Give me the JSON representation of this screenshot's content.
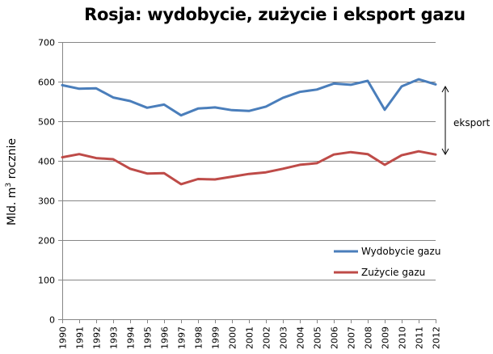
{
  "chart_data": {
    "type": "line",
    "title": "Rosja: wydobycie, zużycie i eksport gazu",
    "xlabel": "",
    "ylabel": "Mld. m³ rocznie",
    "ylabel_parts": {
      "before": "Mld. m",
      "sup": "3",
      "after": " rocznie"
    },
    "ylim": [
      0,
      700
    ],
    "yticks": [
      0,
      100,
      200,
      300,
      400,
      500,
      600,
      700
    ],
    "grid": true,
    "legend_position": "lower right (inside plot)",
    "x": [
      1990,
      1991,
      1992,
      1993,
      1994,
      1995,
      1996,
      1997,
      1998,
      1999,
      2000,
      2001,
      2002,
      2003,
      2004,
      2005,
      2006,
      2007,
      2008,
      2009,
      2010,
      2011,
      2012
    ],
    "series": [
      {
        "name": "Wydobycie gazu",
        "color": "#4a7ebb",
        "values": [
          591,
          582,
          583,
          560,
          551,
          534,
          542,
          515,
          532,
          535,
          528,
          526,
          537,
          559,
          574,
          580,
          595,
          592,
          602,
          529,
          588,
          606,
          593
        ]
      },
      {
        "name": "Zużycie gazu",
        "color": "#be4b48",
        "values": [
          409,
          417,
          407,
          404,
          380,
          368,
          369,
          341,
          354,
          353,
          360,
          367,
          371,
          380,
          390,
          394,
          416,
          422,
          417,
          390,
          414,
          424,
          416
        ]
      }
    ],
    "annotations": [
      {
        "type": "double-arrow",
        "label": "eksport",
        "from_value": 593,
        "to_value": 416,
        "note": "difference between production and consumption at right edge"
      }
    ]
  },
  "legend": {
    "items": [
      {
        "label": "Wydobycie gazu",
        "color": "#4a7ebb"
      },
      {
        "label": "Zużycie gazu",
        "color": "#be4b48"
      }
    ]
  },
  "annotation": {
    "label": "eksport"
  },
  "style": {
    "grid_color": "#868686",
    "axis_color": "#868686"
  }
}
